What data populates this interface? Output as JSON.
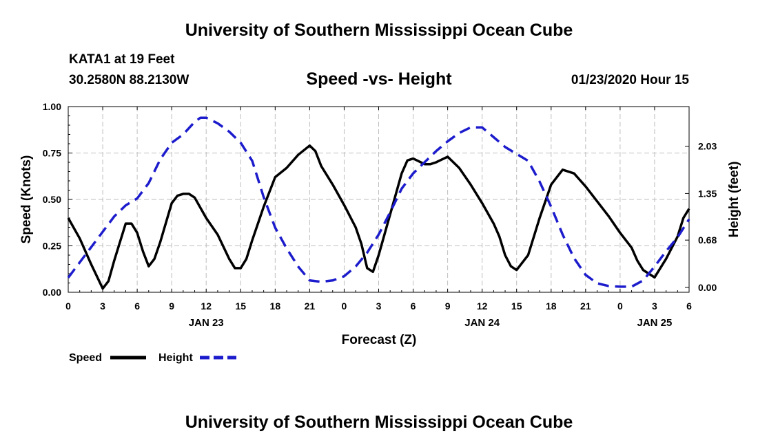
{
  "header": {
    "title": "University of Southern Mississippi Ocean Cube",
    "station": "KATA1 at 19 Feet",
    "location": "30.2580N 88.2130W",
    "chart_title": "Speed -vs- Height",
    "datetime": "01/23/2020 Hour 15"
  },
  "footer": {
    "title": "University of Southern Mississippi Ocean Cube"
  },
  "colors": {
    "speed": "#000000",
    "height": "#1c1ccc",
    "grid": "#bdbdbd"
  },
  "chart_data": {
    "type": "line",
    "title": "Speed -vs- Height",
    "xlabel": "Forecast (Z)",
    "ylabel": "Speed (Knots)",
    "y2label": "Height (feet)",
    "xlim": [
      0,
      54
    ],
    "ylim": [
      0,
      1.0
    ],
    "y2lim": [
      -0.07,
      2.6
    ],
    "x_ticks": [
      0,
      3,
      6,
      9,
      12,
      15,
      18,
      21,
      24,
      27,
      30,
      33,
      36,
      39,
      42,
      45,
      48,
      51,
      54
    ],
    "x_tick_labels": [
      "0",
      "3",
      "6",
      "9",
      "12",
      "15",
      "18",
      "21",
      "0",
      "3",
      "6",
      "9",
      "12",
      "15",
      "18",
      "21",
      "0",
      "3",
      "6"
    ],
    "date_labels": [
      {
        "x": 12,
        "label": "JAN 23"
      },
      {
        "x": 36,
        "label": "JAN 24"
      },
      {
        "x": 51,
        "label": "JAN 25"
      }
    ],
    "y_ticks": [
      0.0,
      0.25,
      0.5,
      0.75,
      1.0
    ],
    "y_tick_labels": [
      "0.00",
      "0.25",
      "0.50",
      "0.75",
      "1.00"
    ],
    "y2_ticks": [
      0.0,
      0.68,
      1.35,
      2.03
    ],
    "y2_tick_labels": [
      "0.00",
      "0.68",
      "1.35",
      "2.03"
    ],
    "grid": true,
    "legend": [
      {
        "name": "Speed",
        "style": "solid"
      },
      {
        "name": "Height",
        "style": "dashed"
      }
    ],
    "series": [
      {
        "name": "Speed",
        "axis": "left",
        "x": [
          0,
          1,
          2,
          3,
          3.5,
          4,
          5,
          5.5,
          6,
          6.5,
          7,
          7.5,
          8,
          9,
          9.5,
          10,
          10.5,
          11,
          12,
          13,
          14,
          14.5,
          15,
          15.5,
          16,
          17,
          18,
          19,
          20,
          21,
          21.5,
          22,
          23,
          24,
          25,
          25.5,
          26,
          26.5,
          27,
          28,
          29,
          29.5,
          30,
          31,
          31.5,
          32,
          33,
          34,
          35,
          36,
          37,
          37.5,
          38,
          38.5,
          39,
          40,
          41,
          42,
          43,
          44,
          45,
          46,
          47,
          48,
          49,
          49.5,
          50,
          51,
          52,
          53,
          53.5,
          54
        ],
        "values": [
          0.4,
          0.29,
          0.15,
          0.02,
          0.06,
          0.17,
          0.37,
          0.37,
          0.32,
          0.22,
          0.14,
          0.18,
          0.27,
          0.48,
          0.52,
          0.53,
          0.53,
          0.51,
          0.4,
          0.31,
          0.18,
          0.13,
          0.13,
          0.18,
          0.28,
          0.46,
          0.62,
          0.67,
          0.74,
          0.79,
          0.76,
          0.68,
          0.58,
          0.47,
          0.35,
          0.26,
          0.13,
          0.11,
          0.2,
          0.42,
          0.64,
          0.71,
          0.72,
          0.69,
          0.69,
          0.7,
          0.73,
          0.67,
          0.58,
          0.48,
          0.37,
          0.3,
          0.2,
          0.14,
          0.12,
          0.2,
          0.4,
          0.58,
          0.66,
          0.64,
          0.57,
          0.49,
          0.41,
          0.32,
          0.24,
          0.17,
          0.12,
          0.08,
          0.18,
          0.3,
          0.4,
          0.45
        ]
      },
      {
        "name": "Height",
        "axis": "right",
        "x": [
          0,
          1,
          2,
          3,
          4,
          5,
          6,
          7,
          8,
          9,
          10,
          11,
          11.5,
          12,
          13,
          14,
          15,
          16,
          17,
          18,
          19,
          20,
          21,
          22,
          23,
          24,
          25,
          26,
          27,
          28,
          29,
          30,
          31,
          32,
          33,
          34,
          35,
          36,
          37,
          38,
          39,
          40,
          41,
          42,
          43,
          44,
          45,
          46,
          47,
          48,
          49,
          50,
          51,
          52,
          53,
          54
        ],
        "values": [
          0.14,
          0.36,
          0.58,
          0.8,
          1.02,
          1.18,
          1.28,
          1.5,
          1.84,
          2.08,
          2.2,
          2.38,
          2.44,
          2.44,
          2.36,
          2.24,
          2.08,
          1.82,
          1.3,
          0.86,
          0.56,
          0.3,
          0.1,
          0.08,
          0.1,
          0.16,
          0.3,
          0.5,
          0.76,
          1.08,
          1.42,
          1.64,
          1.8,
          1.96,
          2.1,
          2.22,
          2.3,
          2.3,
          2.16,
          2.02,
          1.92,
          1.82,
          1.52,
          1.16,
          0.76,
          0.42,
          0.18,
          0.06,
          0.02,
          0.01,
          0.01,
          0.1,
          0.3,
          0.52,
          0.72,
          0.98
        ]
      }
    ]
  }
}
